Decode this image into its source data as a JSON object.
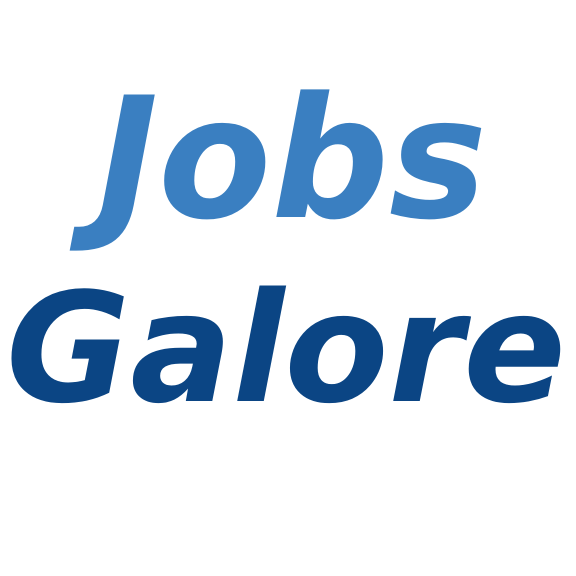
{
  "logo": {
    "line1": "Jobs",
    "line2": "Galore",
    "colors": {
      "line1": "#3a7fc1",
      "line2": "#0b4584",
      "background": "#ffffff"
    }
  }
}
